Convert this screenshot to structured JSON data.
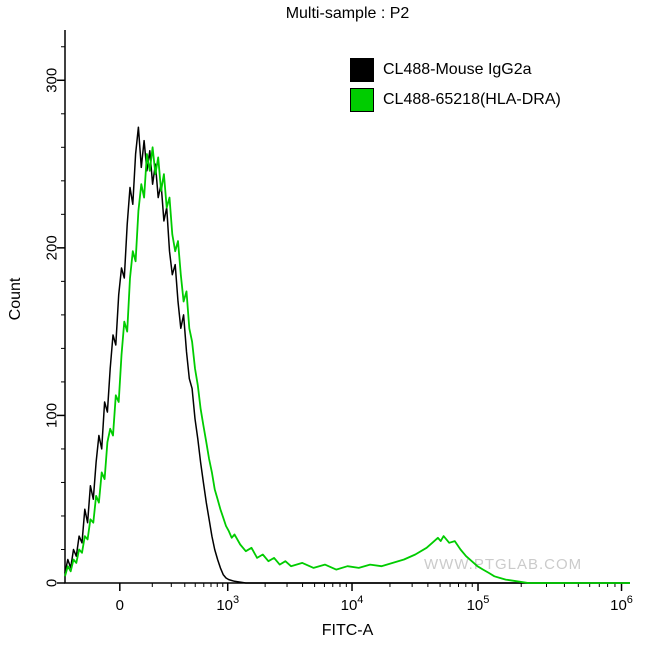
{
  "watermark": "WWW.PTGLAB.COM",
  "chart_data": {
    "type": "line",
    "subtype": "flow-cytometry-histogram-overlay",
    "title": "Multi-sample : P2",
    "xlabel": "FITC-A",
    "ylabel": "Count",
    "x_scale": "biexponential",
    "grid": false,
    "legend_position": "top-right-inside",
    "ylim": [
      0,
      330
    ],
    "y_ticks": [
      0,
      100,
      200,
      300
    ],
    "x_ticks": [
      {
        "label": "0",
        "value": 0,
        "pos": 0.097
      },
      {
        "label": "10^3",
        "base": "10",
        "exp": "3",
        "value": 1000,
        "pos": 0.288
      },
      {
        "label": "10^4",
        "base": "10",
        "exp": "4",
        "value": 10000,
        "pos": 0.508
      },
      {
        "label": "10^5",
        "base": "10",
        "exp": "5",
        "value": 100000,
        "pos": 0.731
      },
      {
        "label": "10^6",
        "base": "10",
        "exp": "6",
        "value": 1000000,
        "pos": 0.985
      }
    ],
    "series": [
      {
        "name": "CL488-Mouse IgG2a",
        "color": "#000000",
        "width": 1.5,
        "peak_count": 272,
        "points": [
          [
            0,
            6
          ],
          [
            0.005,
            14
          ],
          [
            0.01,
            9
          ],
          [
            0.015,
            20
          ],
          [
            0.02,
            16
          ],
          [
            0.025,
            28
          ],
          [
            0.03,
            24
          ],
          [
            0.035,
            44
          ],
          [
            0.04,
            36
          ],
          [
            0.045,
            58
          ],
          [
            0.05,
            50
          ],
          [
            0.055,
            72
          ],
          [
            0.06,
            88
          ],
          [
            0.065,
            80
          ],
          [
            0.07,
            108
          ],
          [
            0.075,
            102
          ],
          [
            0.08,
            128
          ],
          [
            0.085,
            148
          ],
          [
            0.09,
            142
          ],
          [
            0.095,
            172
          ],
          [
            0.1,
            188
          ],
          [
            0.105,
            182
          ],
          [
            0.11,
            214
          ],
          [
            0.115,
            236
          ],
          [
            0.12,
            226
          ],
          [
            0.125,
            256
          ],
          [
            0.13,
            272
          ],
          [
            0.135,
            248
          ],
          [
            0.14,
            264
          ],
          [
            0.145,
            246
          ],
          [
            0.15,
            258
          ],
          [
            0.155,
            238
          ],
          [
            0.16,
            250
          ],
          [
            0.165,
            230
          ],
          [
            0.17,
            238
          ],
          [
            0.175,
            216
          ],
          [
            0.18,
            224
          ],
          [
            0.185,
            198
          ],
          [
            0.19,
            184
          ],
          [
            0.195,
            190
          ],
          [
            0.2,
            168
          ],
          [
            0.205,
            152
          ],
          [
            0.21,
            160
          ],
          [
            0.215,
            138
          ],
          [
            0.22,
            122
          ],
          [
            0.225,
            116
          ],
          [
            0.23,
            98
          ],
          [
            0.235,
            86
          ],
          [
            0.24,
            72
          ],
          [
            0.245,
            60
          ],
          [
            0.25,
            48
          ],
          [
            0.255,
            38
          ],
          [
            0.26,
            28
          ],
          [
            0.265,
            20
          ],
          [
            0.27,
            14
          ],
          [
            0.275,
            9
          ],
          [
            0.28,
            5
          ],
          [
            0.285,
            3
          ],
          [
            0.29,
            2
          ],
          [
            0.3,
            1
          ],
          [
            0.32,
            0
          ],
          [
            1,
            0
          ]
        ]
      },
      {
        "name": "CL488-65218(HLA-DRA)",
        "color": "#00cc00",
        "width": 1.8,
        "peak_count": 260,
        "points": [
          [
            0,
            4
          ],
          [
            0.005,
            10
          ],
          [
            0.01,
            7
          ],
          [
            0.015,
            14
          ],
          [
            0.02,
            12
          ],
          [
            0.025,
            20
          ],
          [
            0.03,
            18
          ],
          [
            0.035,
            28
          ],
          [
            0.04,
            26
          ],
          [
            0.045,
            38
          ],
          [
            0.05,
            36
          ],
          [
            0.055,
            52
          ],
          [
            0.06,
            48
          ],
          [
            0.065,
            66
          ],
          [
            0.07,
            62
          ],
          [
            0.075,
            84
          ],
          [
            0.08,
            92
          ],
          [
            0.085,
            88
          ],
          [
            0.09,
            112
          ],
          [
            0.095,
            108
          ],
          [
            0.1,
            136
          ],
          [
            0.105,
            156
          ],
          [
            0.11,
            150
          ],
          [
            0.115,
            182
          ],
          [
            0.12,
            198
          ],
          [
            0.125,
            192
          ],
          [
            0.13,
            222
          ],
          [
            0.135,
            238
          ],
          [
            0.14,
            230
          ],
          [
            0.145,
            256
          ],
          [
            0.15,
            246
          ],
          [
            0.155,
            260
          ],
          [
            0.16,
            244
          ],
          [
            0.165,
            254
          ],
          [
            0.17,
            234
          ],
          [
            0.175,
            244
          ],
          [
            0.18,
            224
          ],
          [
            0.185,
            230
          ],
          [
            0.19,
            208
          ],
          [
            0.195,
            198
          ],
          [
            0.2,
            204
          ],
          [
            0.205,
            184
          ],
          [
            0.21,
            168
          ],
          [
            0.215,
            174
          ],
          [
            0.22,
            152
          ],
          [
            0.225,
            144
          ],
          [
            0.23,
            128
          ],
          [
            0.235,
            118
          ],
          [
            0.24,
            104
          ],
          [
            0.245,
            94
          ],
          [
            0.25,
            84
          ],
          [
            0.255,
            74
          ],
          [
            0.26,
            66
          ],
          [
            0.265,
            56
          ],
          [
            0.27,
            50
          ],
          [
            0.275,
            44
          ],
          [
            0.28,
            39
          ],
          [
            0.285,
            34
          ],
          [
            0.29,
            31
          ],
          [
            0.295,
            27
          ],
          [
            0.3,
            29
          ],
          [
            0.31,
            23
          ],
          [
            0.32,
            19
          ],
          [
            0.33,
            21
          ],
          [
            0.34,
            15
          ],
          [
            0.35,
            17
          ],
          [
            0.36,
            13
          ],
          [
            0.37,
            15
          ],
          [
            0.38,
            11
          ],
          [
            0.39,
            13
          ],
          [
            0.4,
            10
          ],
          [
            0.42,
            12
          ],
          [
            0.44,
            9
          ],
          [
            0.46,
            11
          ],
          [
            0.48,
            8
          ],
          [
            0.5,
            10
          ],
          [
            0.52,
            9
          ],
          [
            0.54,
            11
          ],
          [
            0.56,
            10
          ],
          [
            0.58,
            12
          ],
          [
            0.6,
            14
          ],
          [
            0.62,
            17
          ],
          [
            0.64,
            21
          ],
          [
            0.65,
            24
          ],
          [
            0.66,
            27
          ],
          [
            0.665,
            25
          ],
          [
            0.67,
            28
          ],
          [
            0.68,
            24
          ],
          [
            0.69,
            25
          ],
          [
            0.7,
            20
          ],
          [
            0.71,
            16
          ],
          [
            0.72,
            13
          ],
          [
            0.73,
            10
          ],
          [
            0.74,
            8
          ],
          [
            0.75,
            6
          ],
          [
            0.76,
            4
          ],
          [
            0.77,
            3
          ],
          [
            0.78,
            2
          ],
          [
            0.8,
            1
          ],
          [
            0.82,
            0
          ],
          [
            1,
            0
          ]
        ]
      }
    ]
  }
}
